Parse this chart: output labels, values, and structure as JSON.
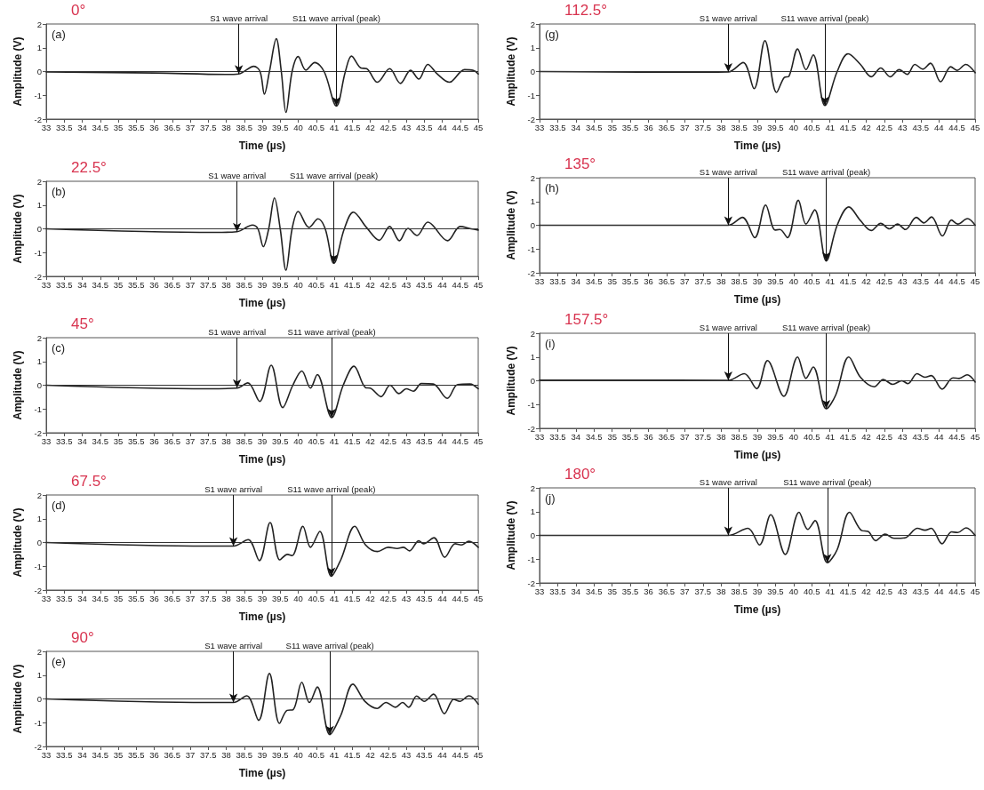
{
  "chart_data": [
    {
      "type": "line",
      "title": "0°",
      "xlabel": "Time (µs)",
      "ylabel": "Amplitude (V)",
      "annotations": [
        "(a)",
        {
          "text": "S1 wave arrival",
          "x": 38.35,
          "y": -0.1
        },
        {
          "text": "S11 wave arrival (peak)",
          "x": 41.06,
          "y": -1.45
        }
      ],
      "color": "#222222",
      "marker": "none",
      "grid": false,
      "xlim": [
        33,
        45
      ],
      "ylim": [
        -2,
        2
      ],
      "xticks": [
        33,
        33.5,
        34,
        34.5,
        35,
        35.5,
        36,
        36.5,
        37,
        37.5,
        38,
        38.5,
        39,
        39.5,
        40,
        40.5,
        41,
        41.5,
        42,
        42.5,
        43,
        43.5,
        44,
        44.5,
        45
      ],
      "yticks": [
        -2,
        -1,
        0,
        1,
        2
      ],
      "ref_lines": [
        {
          "axis": "y",
          "value": 0,
          "color": "#333333"
        }
      ],
      "x": [
        33,
        36,
        38.0,
        38.35,
        38.77,
        38.94,
        39.06,
        39.2,
        39.39,
        39.53,
        39.66,
        39.83,
        40.0,
        40.21,
        40.46,
        40.72,
        41.06,
        41.31,
        41.48,
        41.74,
        41.9,
        42.2,
        42.54,
        42.84,
        43.12,
        43.35,
        43.6,
        43.86,
        44.2,
        44.62,
        44.87,
        45
      ],
      "values": [
        -0.02,
        -0.06,
        -0.12,
        -0.1,
        0.22,
        0,
        -0.95,
        0,
        1.38,
        0,
        -1.72,
        0,
        0.63,
        0.06,
        0.38,
        0,
        -1.45,
        0,
        0.65,
        0.15,
        0.12,
        -0.45,
        0.12,
        -0.5,
        0.05,
        -0.32,
        0.3,
        -0.1,
        -0.45,
        0.08,
        0.05,
        -0.1
      ]
    },
    {
      "type": "line",
      "title": "22.5°",
      "xlabel": "Time (µs)",
      "ylabel": "Amplitude (V)",
      "annotations": [
        "(b)",
        {
          "text": "S1 wave arrival",
          "x": 38.3,
          "y": -0.12
        },
        {
          "text": "S11 wave arrival (peak)",
          "x": 40.99,
          "y": -1.45
        }
      ],
      "color": "#222222",
      "marker": "none",
      "grid": false,
      "xlim": [
        33,
        45
      ],
      "ylim": [
        -2,
        2
      ],
      "xticks": [
        33,
        33.5,
        34,
        34.5,
        35,
        35.5,
        36,
        36.5,
        37,
        37.5,
        38,
        38.5,
        39,
        39.5,
        40,
        40.5,
        41,
        41.5,
        42,
        42.5,
        43,
        43.5,
        44,
        44.5,
        45
      ],
      "yticks": [
        -2,
        -1,
        0,
        1,
        2
      ],
      "ref_lines": [
        {
          "axis": "y",
          "value": 0,
          "color": "#333333"
        }
      ],
      "x": [
        33,
        37.7,
        38.3,
        38.73,
        38.88,
        39.03,
        39.18,
        39.34,
        39.5,
        39.66,
        39.83,
        40.0,
        40.3,
        40.55,
        40.75,
        40.99,
        41.28,
        41.53,
        41.9,
        42.25,
        42.54,
        42.81,
        43.05,
        43.3,
        43.6,
        44.15,
        44.5,
        44.8,
        45
      ],
      "values": [
        0,
        -0.15,
        -0.12,
        0.16,
        0,
        -0.75,
        0,
        1.3,
        0,
        -1.74,
        0,
        0.73,
        0.06,
        0.42,
        0,
        -1.45,
        0,
        0.7,
        0.05,
        -0.48,
        0.1,
        -0.5,
        0.02,
        -0.28,
        0.28,
        -0.5,
        0.1,
        0,
        -0.05
      ]
    },
    {
      "type": "line",
      "title": "45°",
      "xlabel": "Time (µs)",
      "ylabel": "Amplitude (V)",
      "annotations": [
        "(c)",
        {
          "text": "S1 wave arrival",
          "x": 38.3,
          "y": -0.12
        },
        {
          "text": "S11 wave arrival (peak)",
          "x": 40.93,
          "y": -1.36
        }
      ],
      "color": "#222222",
      "marker": "none",
      "grid": false,
      "xlim": [
        33,
        45
      ],
      "ylim": [
        -2,
        2
      ],
      "xticks": [
        33,
        33.5,
        34,
        34.5,
        35,
        35.5,
        36,
        36.5,
        37,
        37.5,
        38,
        38.5,
        39,
        39.5,
        40,
        40.5,
        41,
        41.5,
        42,
        42.5,
        43,
        43.5,
        44,
        44.5,
        45
      ],
      "yticks": [
        -2,
        -1,
        0,
        1,
        2
      ],
      "ref_lines": [
        {
          "axis": "y",
          "value": 0,
          "color": "#333333"
        }
      ],
      "x": [
        33,
        37.5,
        38.3,
        38.6,
        38.93,
        39.25,
        39.57,
        39.85,
        40.1,
        40.34,
        40.53,
        40.93,
        41.25,
        41.55,
        41.87,
        42.0,
        42.3,
        42.55,
        42.8,
        43.0,
        43.2,
        43.42,
        43.75,
        44.14,
        44.43,
        44.77,
        45
      ],
      "values": [
        0,
        -0.15,
        -0.12,
        0.1,
        -0.68,
        0.84,
        -0.94,
        0,
        0.6,
        -0.12,
        0.45,
        -1.36,
        0,
        0.8,
        -0.1,
        -0.12,
        -0.48,
        0,
        -0.35,
        -0.15,
        -0.25,
        0.07,
        0.05,
        -0.55,
        0.03,
        0.05,
        -0.15
      ]
    },
    {
      "type": "line",
      "title": "67.5°",
      "xlabel": "Time (µs)",
      "ylabel": "Amplitude (V)",
      "annotations": [
        "(d)",
        {
          "text": "S1 wave arrival",
          "x": 38.2,
          "y": -0.15
        },
        {
          "text": "S11 wave arrival (peak)",
          "x": 40.92,
          "y": -1.42
        }
      ],
      "color": "#222222",
      "marker": "none",
      "grid": false,
      "xlim": [
        33,
        45
      ],
      "ylim": [
        -2,
        2
      ],
      "xticks": [
        33,
        33.5,
        34,
        34.5,
        35,
        35.5,
        36,
        36.5,
        37,
        37.5,
        38,
        38.5,
        39,
        39.5,
        40,
        40.5,
        41,
        41.5,
        42,
        42.5,
        43,
        43.5,
        44,
        44.5,
        45
      ],
      "yticks": [
        -2,
        -1,
        0,
        1,
        2
      ],
      "ref_lines": [
        {
          "axis": "y",
          "value": 0,
          "color": "#333333"
        }
      ],
      "x": [
        33,
        37.5,
        38.2,
        38.61,
        38.92,
        39.22,
        39.49,
        39.7,
        39.83,
        40.13,
        40.34,
        40.6,
        40.92,
        41.19,
        41.57,
        41.87,
        42.2,
        42.5,
        42.75,
        42.92,
        43.09,
        43.35,
        43.48,
        43.77,
        44.07,
        44.36,
        44.53,
        44.74,
        45
      ],
      "values": [
        0,
        -0.15,
        -0.15,
        0.12,
        -0.76,
        0.84,
        -0.73,
        -0.5,
        -0.55,
        0.68,
        -0.2,
        0.47,
        -1.42,
        -0.7,
        0.68,
        -0.1,
        -0.38,
        -0.2,
        -0.25,
        -0.2,
        -0.35,
        0.07,
        -0.05,
        0.2,
        -0.62,
        -0.05,
        -0.1,
        0.05,
        -0.2
      ]
    },
    {
      "type": "line",
      "title": "90°",
      "xlabel": "Time (µs)",
      "ylabel": "Amplitude (V)",
      "annotations": [
        "(e)",
        {
          "text": "S1 wave arrival",
          "x": 38.2,
          "y": -0.15
        },
        {
          "text": "S11 wave arrival (peak)",
          "x": 40.88,
          "y": -1.5
        }
      ],
      "color": "#222222",
      "marker": "none",
      "grid": false,
      "xlim": [
        33,
        45
      ],
      "ylim": [
        -2,
        2
      ],
      "xticks": [
        33,
        33.5,
        34,
        34.5,
        35,
        35.5,
        36,
        36.5,
        37,
        37.5,
        38,
        38.5,
        39,
        39.5,
        40,
        40.5,
        41,
        41.5,
        42,
        42.5,
        43,
        43.5,
        44,
        44.5,
        45
      ],
      "yticks": [
        -2,
        -1,
        0,
        1,
        2
      ],
      "ref_lines": [
        {
          "axis": "y",
          "value": 0,
          "color": "#333333"
        }
      ],
      "x": [
        33,
        37.5,
        38.2,
        38.57,
        38.9,
        39.2,
        39.48,
        39.69,
        39.86,
        40.1,
        40.31,
        40.53,
        40.88,
        41.18,
        41.52,
        41.85,
        42.19,
        42.44,
        42.7,
        42.9,
        43.07,
        43.29,
        43.5,
        43.76,
        44.06,
        44.32,
        44.49,
        44.74,
        45
      ],
      "values": [
        0,
        -0.15,
        -0.15,
        0.13,
        -0.9,
        1.07,
        -1.03,
        -0.48,
        -0.45,
        0.7,
        -0.15,
        0.5,
        -1.5,
        -0.7,
        0.62,
        -0.1,
        -0.4,
        -0.15,
        -0.35,
        -0.15,
        -0.35,
        0.12,
        -0.1,
        0.2,
        -0.62,
        -0.02,
        -0.1,
        0.13,
        -0.22
      ]
    },
    {
      "type": "line",
      "title": "112.5°",
      "xlabel": "Time (µs)",
      "ylabel": "Amplitude (V)",
      "annotations": [
        "(g)",
        {
          "text": "S1 wave arrival",
          "x": 38.2,
          "y": -0.02
        },
        {
          "text": "S11 wave arrival (peak)",
          "x": 40.86,
          "y": -1.43
        }
      ],
      "color": "#222222",
      "marker": "none",
      "grid": false,
      "xlim": [
        33,
        45
      ],
      "ylim": [
        -2,
        2
      ],
      "xticks": [
        33,
        33.5,
        34,
        34.5,
        35,
        35.5,
        36,
        36.5,
        37,
        37.5,
        38,
        38.5,
        39,
        39.5,
        40,
        40.5,
        41,
        41.5,
        42,
        42.5,
        43,
        43.5,
        44,
        44.5,
        45
      ],
      "yticks": [
        -2,
        -1,
        0,
        1,
        2
      ],
      "ref_lines": [
        {
          "axis": "y",
          "value": 0,
          "color": "#333333"
        }
      ],
      "x": [
        33,
        37.5,
        38.2,
        38.61,
        38.91,
        39.21,
        39.53,
        39.74,
        39.87,
        40.11,
        40.34,
        40.54,
        40.86,
        41.2,
        41.5,
        41.84,
        42.14,
        42.4,
        42.66,
        42.91,
        43.13,
        43.34,
        43.56,
        43.77,
        44.05,
        44.33,
        44.5,
        44.74,
        45
      ],
      "values": [
        0,
        -0.03,
        -0.02,
        0.38,
        -0.72,
        1.3,
        -0.88,
        -0.25,
        -0.2,
        0.95,
        0.08,
        0.7,
        -1.43,
        0,
        0.75,
        0.3,
        -0.22,
        0.15,
        -0.22,
        0.08,
        -0.12,
        0.3,
        0.1,
        0.35,
        -0.43,
        0.2,
        0.05,
        0.3,
        -0.05
      ]
    },
    {
      "type": "line",
      "title": "135°",
      "xlabel": "Time (µs)",
      "ylabel": "Amplitude (V)",
      "annotations": [
        "(h)",
        {
          "text": "S1 wave arrival",
          "x": 38.2,
          "y": 0
        },
        {
          "text": "S11 wave arrival (peak)",
          "x": 40.9,
          "y": -1.5
        }
      ],
      "color": "#222222",
      "marker": "none",
      "grid": false,
      "xlim": [
        33,
        45
      ],
      "ylim": [
        -2,
        2
      ],
      "xticks": [
        33,
        33.5,
        34,
        34.5,
        35,
        35.5,
        36,
        36.5,
        37,
        37.5,
        38,
        38.5,
        39,
        39.5,
        40,
        40.5,
        41,
        41.5,
        42,
        42.5,
        43,
        43.5,
        44,
        44.5,
        45
      ],
      "yticks": [
        -2,
        -1,
        0,
        1,
        2
      ],
      "ref_lines": [
        {
          "axis": "y",
          "value": 0,
          "color": "#333333"
        }
      ],
      "x": [
        33,
        38.2,
        38.59,
        38.93,
        39.23,
        39.49,
        39.62,
        39.83,
        40.13,
        40.34,
        40.58,
        40.9,
        41.2,
        41.52,
        41.84,
        42.14,
        42.4,
        42.64,
        42.86,
        43.08,
        43.38,
        43.59,
        43.8,
        44.1,
        44.35,
        44.52,
        44.79,
        45
      ],
      "values": [
        0,
        0,
        0.33,
        -0.52,
        0.85,
        -0.2,
        -0.18,
        -0.52,
        1.05,
        0.05,
        0.65,
        -1.5,
        0,
        0.77,
        0.2,
        -0.22,
        0.08,
        -0.15,
        0.05,
        -0.18,
        0.33,
        0.1,
        0.35,
        -0.45,
        0.22,
        0.05,
        0.28,
        0
      ]
    },
    {
      "type": "line",
      "title": "157.5°",
      "xlabel": "Time (µs)",
      "ylabel": "Amplitude (V)",
      "annotations": [
        "(i)",
        {
          "text": "S1 wave arrival",
          "x": 38.2,
          "y": 0.02
        },
        {
          "text": "S11 wave arrival (peak)",
          "x": 40.9,
          "y": -1.18
        }
      ],
      "color": "#222222",
      "marker": "none",
      "grid": false,
      "xlim": [
        33,
        45
      ],
      "ylim": [
        -2,
        2
      ],
      "xticks": [
        33,
        33.5,
        34,
        34.5,
        35,
        35.5,
        36,
        36.5,
        37,
        37.5,
        38,
        38.5,
        39,
        39.5,
        40,
        40.5,
        41,
        41.5,
        42,
        42.5,
        43,
        43.5,
        44,
        44.5,
        45
      ],
      "yticks": [
        -2,
        -1,
        0,
        1,
        2
      ],
      "ref_lines": [
        {
          "axis": "y",
          "value": 0,
          "color": "#333333"
        }
      ],
      "x": [
        33,
        38.2,
        38.64,
        38.98,
        39.28,
        39.73,
        40.11,
        40.34,
        40.54,
        40.9,
        41.16,
        41.52,
        41.84,
        42.22,
        42.47,
        42.73,
        42.98,
        43.15,
        43.4,
        43.62,
        43.79,
        44.09,
        44.39,
        44.56,
        44.78,
        45
      ],
      "values": [
        0.03,
        0.02,
        0.3,
        -0.33,
        0.85,
        -0.65,
        1.0,
        0.1,
        0.58,
        -1.18,
        -0.6,
        1.0,
        0.15,
        -0.25,
        0.05,
        -0.15,
        0,
        -0.12,
        0.3,
        0.15,
        0.22,
        -0.35,
        0.12,
        0.1,
        0.25,
        -0.05
      ]
    },
    {
      "type": "line",
      "title": "180°",
      "xlabel": "Time (µs)",
      "ylabel": "Amplitude (V)",
      "annotations": [
        "(j)",
        {
          "text": "S1 wave arrival",
          "x": 38.2,
          "y": 0
        },
        {
          "text": "S11 wave arrival (peak)",
          "x": 40.93,
          "y": -1.15
        }
      ],
      "color": "#222222",
      "marker": "none",
      "grid": false,
      "xlim": [
        33,
        45
      ],
      "ylim": [
        -2,
        2
      ],
      "xticks": [
        33,
        33.5,
        34,
        34.5,
        35,
        35.5,
        36,
        36.5,
        37,
        37.5,
        38,
        38.5,
        39,
        39.5,
        40,
        40.5,
        41,
        41.5,
        42,
        42.5,
        43,
        43.5,
        44,
        44.5,
        45
      ],
      "yticks": [
        -2,
        -1,
        0,
        1,
        2
      ],
      "ref_lines": [
        {
          "axis": "y",
          "value": 0,
          "color": "#333333"
        }
      ],
      "x": [
        33,
        38.2,
        38.74,
        39.06,
        39.37,
        39.77,
        40.15,
        40.39,
        40.59,
        40.93,
        41.2,
        41.54,
        41.88,
        42.05,
        42.26,
        42.52,
        42.77,
        43.07,
        43.41,
        43.62,
        43.79,
        44.09,
        44.35,
        44.52,
        44.75,
        45
      ],
      "values": [
        0,
        0,
        0.3,
        -0.4,
        0.87,
        -0.8,
        0.97,
        0.25,
        0.62,
        -1.15,
        -0.6,
        0.97,
        0.2,
        0.17,
        -0.22,
        0.05,
        -0.12,
        -0.1,
        0.3,
        0.22,
        0.3,
        -0.35,
        0.15,
        0.12,
        0.32,
        0
      ]
    }
  ]
}
